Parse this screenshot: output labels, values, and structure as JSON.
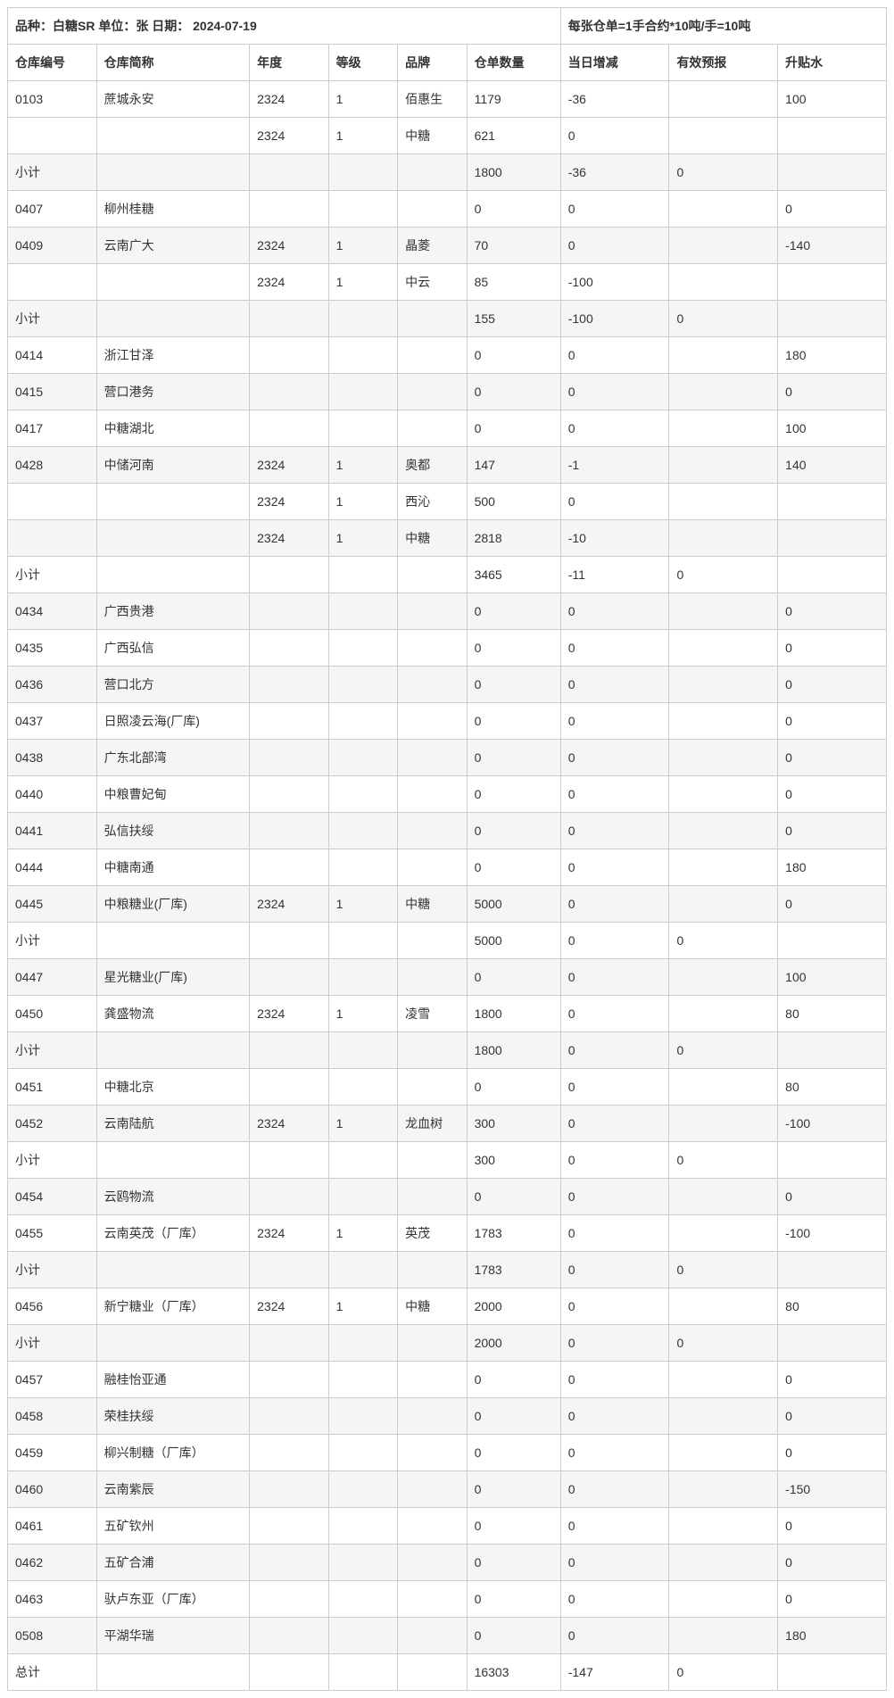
{
  "title_left": "品种：白糖SR    单位：张    日期： 2024-07-19",
  "title_right": "每张仓单=1手合约*10吨/手=10吨",
  "columns": [
    "仓库编号",
    "仓库简称",
    "年度",
    "等级",
    "品牌",
    "仓单数量",
    "当日增减",
    "有效预报",
    "升贴水"
  ],
  "rows": [
    {
      "shaded": false,
      "cells": [
        "0103",
        "蔗城永安",
        "2324",
        "1",
        "佰惠生",
        "1179",
        "-36",
        "",
        "100"
      ]
    },
    {
      "shaded": false,
      "cells": [
        "",
        "",
        "2324",
        "1",
        "中糖",
        "621",
        "0",
        "",
        ""
      ]
    },
    {
      "shaded": true,
      "cells": [
        "小计",
        "",
        "",
        "",
        "",
        "1800",
        "-36",
        "0",
        ""
      ]
    },
    {
      "shaded": false,
      "cells": [
        "0407",
        "柳州桂糖",
        "",
        "",
        "",
        "0",
        "0",
        "",
        "0"
      ]
    },
    {
      "shaded": true,
      "cells": [
        "0409",
        "云南广大",
        "2324",
        "1",
        "晶菱",
        "70",
        "0",
        "",
        "-140"
      ]
    },
    {
      "shaded": false,
      "cells": [
        "",
        "",
        "2324",
        "1",
        "中云",
        "85",
        "-100",
        "",
        ""
      ]
    },
    {
      "shaded": true,
      "cells": [
        "小计",
        "",
        "",
        "",
        "",
        "155",
        "-100",
        "0",
        ""
      ]
    },
    {
      "shaded": false,
      "cells": [
        "0414",
        "浙江甘泽",
        "",
        "",
        "",
        "0",
        "0",
        "",
        "180"
      ]
    },
    {
      "shaded": true,
      "cells": [
        "0415",
        "营口港务",
        "",
        "",
        "",
        "0",
        "0",
        "",
        "0"
      ]
    },
    {
      "shaded": false,
      "cells": [
        "0417",
        "中糖湖北",
        "",
        "",
        "",
        "0",
        "0",
        "",
        "100"
      ]
    },
    {
      "shaded": true,
      "cells": [
        "0428",
        "中储河南",
        "2324",
        "1",
        "奥都",
        "147",
        "-1",
        "",
        "140"
      ]
    },
    {
      "shaded": false,
      "cells": [
        "",
        "",
        "2324",
        "1",
        "西沁",
        "500",
        "0",
        "",
        ""
      ]
    },
    {
      "shaded": true,
      "cells": [
        "",
        "",
        "2324",
        "1",
        "中糖",
        "2818",
        "-10",
        "",
        ""
      ]
    },
    {
      "shaded": false,
      "cells": [
        "小计",
        "",
        "",
        "",
        "",
        "3465",
        "-11",
        "0",
        ""
      ]
    },
    {
      "shaded": true,
      "cells": [
        "0434",
        "广西贵港",
        "",
        "",
        "",
        "0",
        "0",
        "",
        "0"
      ]
    },
    {
      "shaded": false,
      "cells": [
        "0435",
        "广西弘信",
        "",
        "",
        "",
        "0",
        "0",
        "",
        "0"
      ]
    },
    {
      "shaded": true,
      "cells": [
        "0436",
        "营口北方",
        "",
        "",
        "",
        "0",
        "0",
        "",
        "0"
      ]
    },
    {
      "shaded": false,
      "cells": [
        "0437",
        "日照凌云海(厂库)",
        "",
        "",
        "",
        "0",
        "0",
        "",
        "0"
      ]
    },
    {
      "shaded": true,
      "cells": [
        "0438",
        "广东北部湾",
        "",
        "",
        "",
        "0",
        "0",
        "",
        "0"
      ]
    },
    {
      "shaded": false,
      "cells": [
        "0440",
        "中粮曹妃甸",
        "",
        "",
        "",
        "0",
        "0",
        "",
        "0"
      ]
    },
    {
      "shaded": true,
      "cells": [
        "0441",
        "弘信扶绥",
        "",
        "",
        "",
        "0",
        "0",
        "",
        "0"
      ]
    },
    {
      "shaded": false,
      "cells": [
        "0444",
        "中糖南通",
        "",
        "",
        "",
        "0",
        "0",
        "",
        "180"
      ]
    },
    {
      "shaded": true,
      "cells": [
        "0445",
        "中粮糖业(厂库)",
        "2324",
        "1",
        "中糖",
        "5000",
        "0",
        "",
        "0"
      ]
    },
    {
      "shaded": false,
      "cells": [
        "小计",
        "",
        "",
        "",
        "",
        "5000",
        "0",
        "0",
        ""
      ]
    },
    {
      "shaded": true,
      "cells": [
        "0447",
        "星光糖业(厂库)",
        "",
        "",
        "",
        "0",
        "0",
        "",
        "100"
      ]
    },
    {
      "shaded": false,
      "cells": [
        "0450",
        "龚盛物流",
        "2324",
        "1",
        "凌雪",
        "1800",
        "0",
        "",
        "80"
      ]
    },
    {
      "shaded": true,
      "cells": [
        "小计",
        "",
        "",
        "",
        "",
        "1800",
        "0",
        "0",
        ""
      ]
    },
    {
      "shaded": false,
      "cells": [
        "0451",
        "中糖北京",
        "",
        "",
        "",
        "0",
        "0",
        "",
        "80"
      ]
    },
    {
      "shaded": true,
      "cells": [
        "0452",
        "云南陆航",
        "2324",
        "1",
        "龙血树",
        "300",
        "0",
        "",
        "-100"
      ]
    },
    {
      "shaded": false,
      "cells": [
        "小计",
        "",
        "",
        "",
        "",
        "300",
        "0",
        "0",
        ""
      ]
    },
    {
      "shaded": true,
      "cells": [
        "0454",
        "云鸥物流",
        "",
        "",
        "",
        "0",
        "0",
        "",
        "0"
      ]
    },
    {
      "shaded": false,
      "cells": [
        "0455",
        "云南英茂（厂库）",
        "2324",
        "1",
        "英茂",
        "1783",
        "0",
        "",
        "-100"
      ]
    },
    {
      "shaded": true,
      "cells": [
        "小计",
        "",
        "",
        "",
        "",
        "1783",
        "0",
        "0",
        ""
      ]
    },
    {
      "shaded": false,
      "cells": [
        "0456",
        "新宁糖业（厂库）",
        "2324",
        "1",
        "中糖",
        "2000",
        "0",
        "",
        "80"
      ]
    },
    {
      "shaded": true,
      "cells": [
        "小计",
        "",
        "",
        "",
        "",
        "2000",
        "0",
        "0",
        ""
      ]
    },
    {
      "shaded": false,
      "cells": [
        "0457",
        "融桂怡亚通",
        "",
        "",
        "",
        "0",
        "0",
        "",
        "0"
      ]
    },
    {
      "shaded": true,
      "cells": [
        "0458",
        "荣桂扶绥",
        "",
        "",
        "",
        "0",
        "0",
        "",
        "0"
      ]
    },
    {
      "shaded": false,
      "cells": [
        "0459",
        "柳兴制糖（厂库）",
        "",
        "",
        "",
        "0",
        "0",
        "",
        "0"
      ]
    },
    {
      "shaded": true,
      "cells": [
        "0460",
        "云南紫辰",
        "",
        "",
        "",
        "0",
        "0",
        "",
        "-150"
      ]
    },
    {
      "shaded": false,
      "cells": [
        "0461",
        "五矿钦州",
        "",
        "",
        "",
        "0",
        "0",
        "",
        "0"
      ]
    },
    {
      "shaded": true,
      "cells": [
        "0462",
        "五矿合浦",
        "",
        "",
        "",
        "0",
        "0",
        "",
        "0"
      ]
    },
    {
      "shaded": false,
      "cells": [
        "0463",
        "驮卢东亚（厂库）",
        "",
        "",
        "",
        "0",
        "0",
        "",
        "0"
      ]
    },
    {
      "shaded": true,
      "cells": [
        "0508",
        "平湖华瑞",
        "",
        "",
        "",
        "0",
        "0",
        "",
        "180"
      ]
    },
    {
      "shaded": false,
      "cells": [
        "总计",
        "",
        "",
        "",
        "",
        "16303",
        "-147",
        "0",
        ""
      ]
    }
  ],
  "col_widths_pct": [
    9,
    15.5,
    8,
    7,
    7,
    9.5,
    11,
    11,
    11
  ]
}
